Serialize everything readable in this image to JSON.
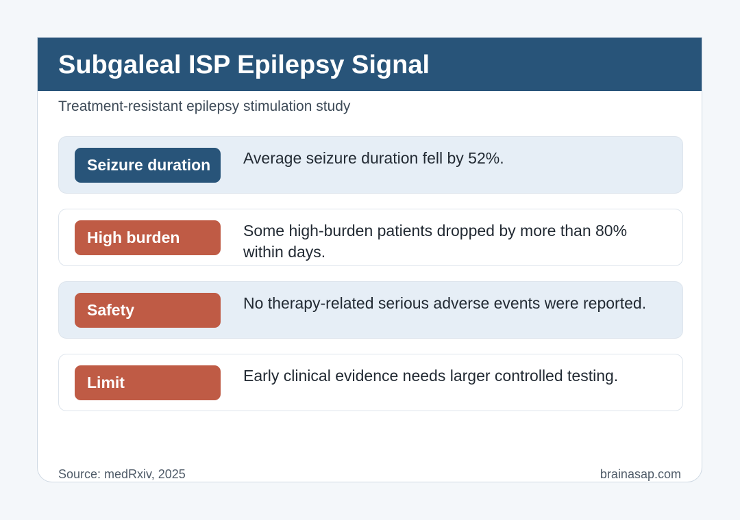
{
  "header": {
    "title": "Subgaleal ISP Epilepsy Signal",
    "subtitle": "Treatment-resistant epilepsy stimulation study"
  },
  "findings": [
    {
      "label": "Seizure duration",
      "text": "Average seizure duration fell by 52%.",
      "pill_color": "#285479"
    },
    {
      "label": "High burden",
      "text": "Some high-burden patients dropped by more than 80% within days.",
      "pill_color": "#bf5b45"
    },
    {
      "label": "Safety",
      "text": "No therapy-related serious adverse events were reported.",
      "pill_color": "#bf5b45"
    },
    {
      "label": "Limit",
      "text": "Early clinical evidence needs larger controlled testing.",
      "pill_color": "#bf5b45"
    }
  ],
  "footer": {
    "source": "Source: medRxiv, 2025",
    "site": "brainasap.com"
  },
  "colors": {
    "header_bg": "#285479",
    "accent_rust": "#bf5b45",
    "row_shade": "#e6eef6",
    "page_bg": "#f4f7fa"
  }
}
